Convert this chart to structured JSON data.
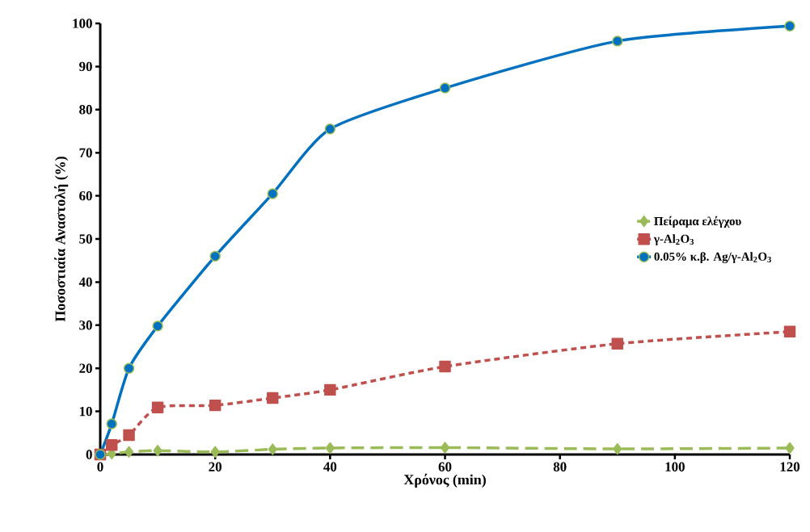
{
  "chart_data": {
    "type": "line",
    "xlabel": "Χρόνος (min)",
    "ylabel": "Ποσοστιαία Αναστολή (%)",
    "x": [
      0,
      2,
      5,
      10,
      20,
      30,
      40,
      60,
      90,
      120
    ],
    "series": [
      {
        "name": "Πείραμα ελέγχου",
        "color": "#9bbb59",
        "marker": "diamond",
        "line_style": "dashed",
        "values": [
          0,
          0.2,
          0.6,
          0.9,
          0.6,
          1.2,
          1.5,
          1.6,
          1.3,
          1.5
        ]
      },
      {
        "name": "γ-Al$_{2}$O$_{3}$",
        "color": "#c0504d",
        "marker": "square",
        "line_style": "dotted",
        "values": [
          0,
          2.2,
          4.5,
          10.9,
          11.4,
          13.1,
          15,
          20.4,
          25.7,
          28.5
        ]
      },
      {
        "name": "0.05% κ.β. Ag/γ-Al$_{2}$O$_{3}$",
        "color": "#0070c0",
        "marker": "circle",
        "line_style": "solid",
        "values": [
          0,
          7.1,
          20,
          29.8,
          46,
          60.5,
          75.5,
          85,
          95.9,
          99.4
        ]
      }
    ],
    "xlim": [
      0,
      120
    ],
    "ylim": [
      0,
      100
    ],
    "xticks": [
      0,
      20,
      40,
      60,
      80,
      100,
      120
    ],
    "yticks": [
      0,
      10,
      20,
      30,
      40,
      50,
      60,
      70,
      80,
      90,
      100
    ],
    "legend": "right",
    "grid": false
  }
}
